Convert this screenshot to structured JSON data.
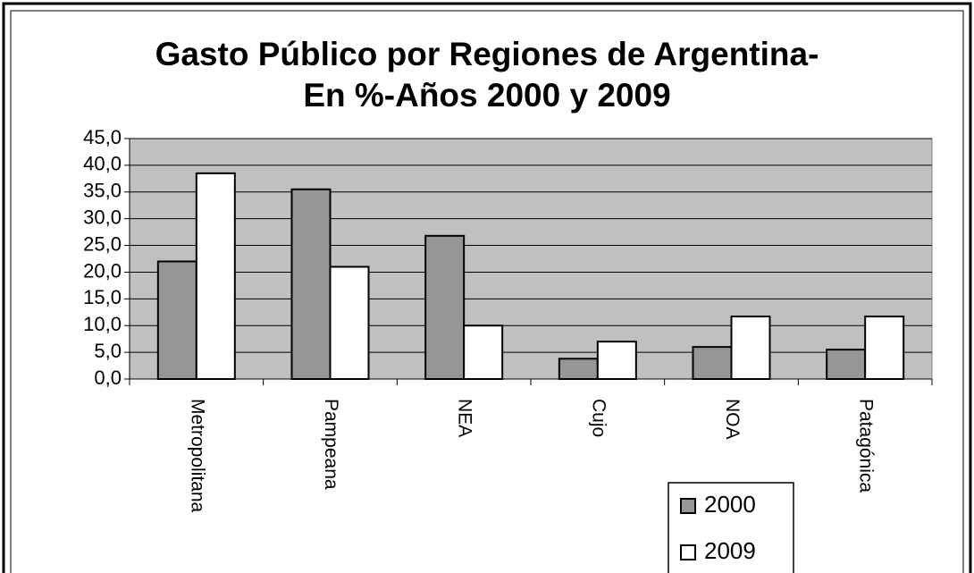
{
  "chart_data": {
    "type": "bar",
    "title": "Gasto Público por Regiones de Argentina-En %-Años 2000 y 2009",
    "categories": [
      "Metropolitana",
      "Pampeana",
      "NEA",
      "Cujo",
      "NOA",
      "Patagónica"
    ],
    "series": [
      {
        "name": "2000",
        "color": "#969696",
        "values": [
          22.0,
          35.5,
          26.8,
          3.8,
          6.0,
          5.5
        ]
      },
      {
        "name": "2009",
        "color": "#ffffff",
        "values": [
          38.5,
          21.0,
          10.0,
          7.0,
          11.7,
          11.7
        ]
      }
    ],
    "ylim": [
      0,
      45
    ],
    "yticks": [
      {
        "value": 0,
        "label": "0,0"
      },
      {
        "value": 5,
        "label": "5,0"
      },
      {
        "value": 10,
        "label": "10,0"
      },
      {
        "value": 15,
        "label": "15,0"
      },
      {
        "value": 20,
        "label": "20,0"
      },
      {
        "value": 25,
        "label": "25,0"
      },
      {
        "value": 30,
        "label": "30,0"
      },
      {
        "value": 35,
        "label": "35,0"
      },
      {
        "value": 40,
        "label": "40,0"
      },
      {
        "value": 45,
        "label": "45,0"
      }
    ],
    "grid": true,
    "legend": "bottom-right"
  }
}
